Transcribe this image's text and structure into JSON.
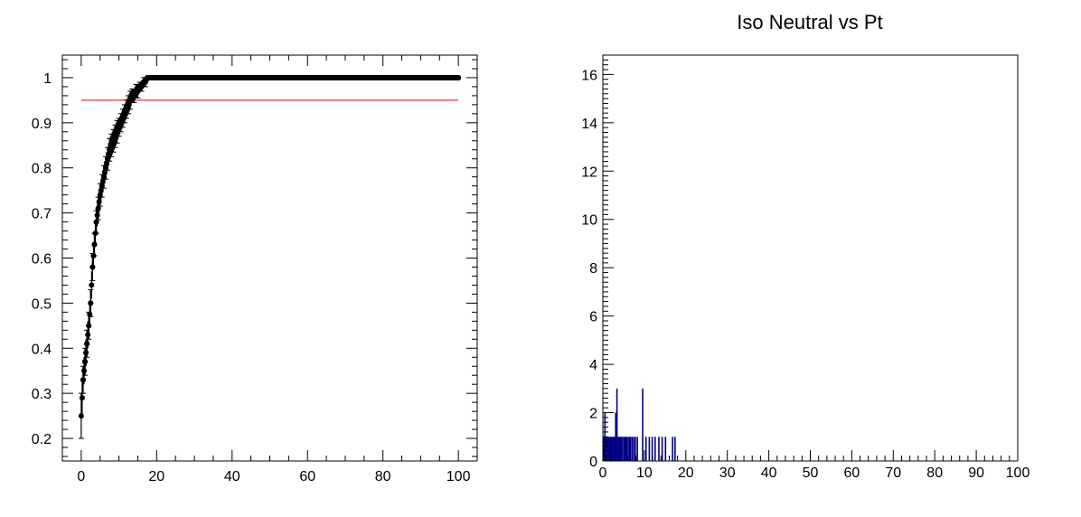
{
  "chart_data": [
    {
      "type": "scatter",
      "title": "",
      "xlabel": "",
      "ylabel": "",
      "xlim": [
        -5,
        105
      ],
      "ylim": [
        0.15,
        1.05
      ],
      "xticks": [
        "0",
        "20",
        "40",
        "60",
        "80",
        "100"
      ],
      "yticks": [
        "0.2",
        "0.3",
        "0.4",
        "0.5",
        "0.6",
        "0.7",
        "0.8",
        "0.9",
        "1"
      ],
      "reference_line": {
        "y": 0.95,
        "x_range": [
          0,
          100
        ],
        "color": "#dd0000"
      },
      "marker_color": "#000000",
      "series": [
        {
          "x": [
            0,
            0.5,
            1,
            1.5,
            2,
            2.5,
            3,
            3.5,
            4,
            4.5,
            5,
            5.5,
            6,
            6.5,
            7,
            7.5,
            8,
            8.5,
            9,
            9.5,
            10,
            10.5,
            11,
            11.5,
            12,
            12.5,
            13,
            13.5,
            14,
            14.5,
            15,
            15.5,
            16,
            16.5,
            17,
            17.5,
            18,
            19,
            20,
            22,
            25,
            30,
            35,
            40,
            45,
            50,
            55,
            60,
            65,
            70,
            75,
            80,
            85,
            90,
            95,
            100
          ],
          "y": [
            0.25,
            0.33,
            0.37,
            0.41,
            0.45,
            0.5,
            0.58,
            0.63,
            0.68,
            0.71,
            0.74,
            0.76,
            0.78,
            0.8,
            0.82,
            0.84,
            0.85,
            0.86,
            0.87,
            0.88,
            0.89,
            0.9,
            0.91,
            0.92,
            0.93,
            0.94,
            0.95,
            0.96,
            0.96,
            0.97,
            0.97,
            0.98,
            0.98,
            0.99,
            0.99,
            1,
            1,
            1,
            1,
            1,
            1,
            1,
            1,
            1,
            1,
            1,
            1,
            1,
            1,
            1,
            1,
            1,
            1,
            1,
            1,
            1
          ],
          "yerr": [
            0.05,
            0.03,
            0.03,
            0.03,
            0.03,
            0.03,
            0.03,
            0.025,
            0.025,
            0.025,
            0.025,
            0.025,
            0.025,
            0.025,
            0.025,
            0.025,
            0.025,
            0.025,
            0.025,
            0.025,
            0.02,
            0.02,
            0.02,
            0.02,
            0.02,
            0.02,
            0.02,
            0.015,
            0.015,
            0.015,
            0.015,
            0.01,
            0.01,
            0.01,
            0.01,
            0,
            0,
            0,
            0,
            0,
            0,
            0,
            0,
            0,
            0,
            0,
            0,
            0,
            0,
            0,
            0,
            0,
            0,
            0,
            0,
            0
          ]
        }
      ]
    },
    {
      "type": "bar",
      "title": "Iso Neutral vs Pt",
      "xlabel": "",
      "ylabel": "",
      "xlim": [
        0,
        100
      ],
      "ylim": [
        0,
        16.8
      ],
      "xticks": [
        "0",
        "10",
        "20",
        "30",
        "40",
        "50",
        "60",
        "70",
        "80",
        "90",
        "100"
      ],
      "yticks": [
        "0",
        "2",
        "4",
        "6",
        "8",
        "10",
        "12",
        "14",
        "16"
      ],
      "bar_color": "#000080",
      "bins": [
        {
          "x": 0.2,
          "v": 1
        },
        {
          "x": 0.5,
          "v": 2
        },
        {
          "x": 0.8,
          "v": 1
        },
        {
          "x": 1.0,
          "v": 1
        },
        {
          "x": 1.3,
          "v": 1
        },
        {
          "x": 1.6,
          "v": 1
        },
        {
          "x": 1.9,
          "v": 1
        },
        {
          "x": 2.2,
          "v": 1
        },
        {
          "x": 2.5,
          "v": 1
        },
        {
          "x": 2.8,
          "v": 1
        },
        {
          "x": 3.1,
          "v": 2
        },
        {
          "x": 3.4,
          "v": 3
        },
        {
          "x": 3.7,
          "v": 1
        },
        {
          "x": 4.0,
          "v": 1
        },
        {
          "x": 4.3,
          "v": 1
        },
        {
          "x": 4.6,
          "v": 1
        },
        {
          "x": 5.0,
          "v": 1
        },
        {
          "x": 5.3,
          "v": 1
        },
        {
          "x": 5.6,
          "v": 1
        },
        {
          "x": 5.9,
          "v": 1
        },
        {
          "x": 6.3,
          "v": 1
        },
        {
          "x": 6.6,
          "v": 1
        },
        {
          "x": 7.0,
          "v": 1
        },
        {
          "x": 7.4,
          "v": 1
        },
        {
          "x": 7.8,
          "v": 1
        },
        {
          "x": 8.3,
          "v": 1
        },
        {
          "x": 9.6,
          "v": 3
        },
        {
          "x": 10.4,
          "v": 1
        },
        {
          "x": 11.2,
          "v": 1
        },
        {
          "x": 11.9,
          "v": 1
        },
        {
          "x": 12.6,
          "v": 1
        },
        {
          "x": 13.5,
          "v": 1
        },
        {
          "x": 14.3,
          "v": 1
        },
        {
          "x": 15.1,
          "v": 1
        },
        {
          "x": 16.8,
          "v": 1
        },
        {
          "x": 17.4,
          "v": 1
        }
      ]
    }
  ]
}
